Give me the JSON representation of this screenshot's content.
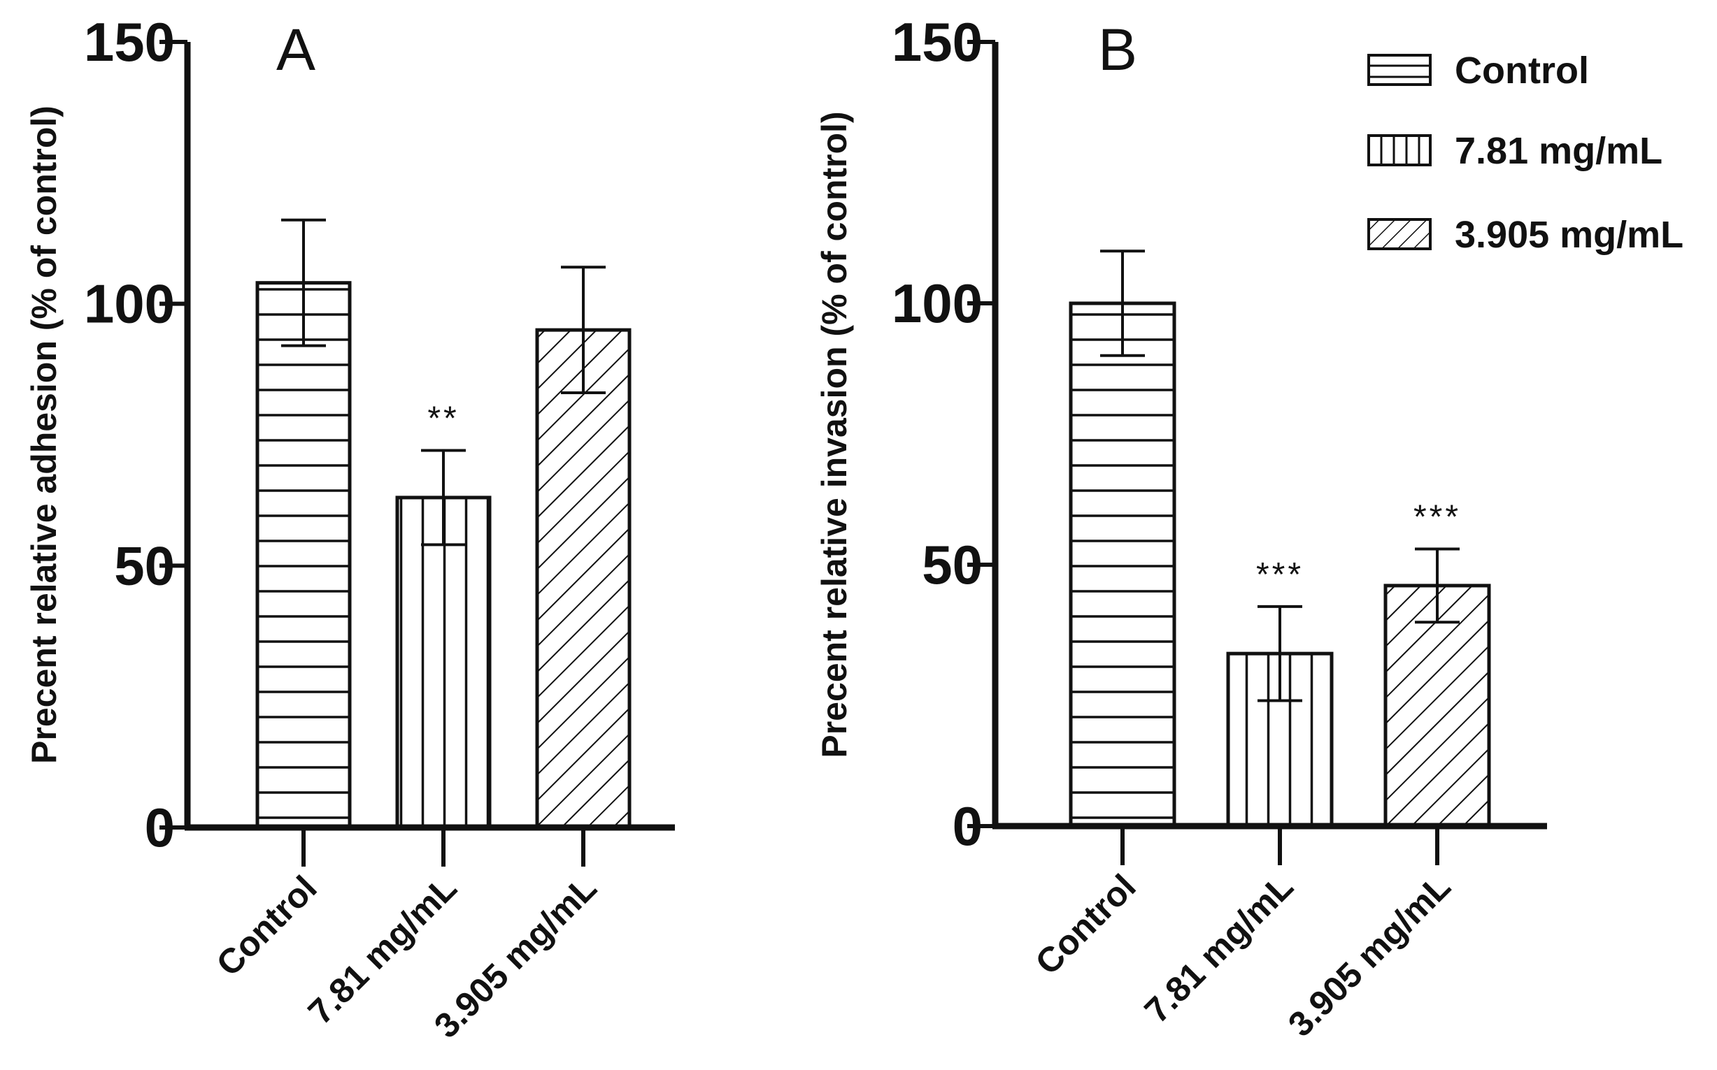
{
  "chart_data": [
    {
      "type": "bar",
      "panel_label": "A",
      "title": "",
      "categories": [
        "Control",
        "7.81 mg/mL",
        "3.905 mg/mL"
      ],
      "values": [
        104,
        63,
        95
      ],
      "errors": [
        12,
        9,
        12
      ],
      "significance": [
        "",
        "**",
        ""
      ],
      "patterns": [
        "horizontal",
        "vertical",
        "diagonal"
      ],
      "xlabel": "",
      "ylabel": "Precent relative adhesion (% of control)",
      "ylim": [
        0,
        150
      ],
      "yticks": [
        0,
        50,
        100,
        150
      ],
      "grid": false
    },
    {
      "type": "bar",
      "panel_label": "B",
      "title": "",
      "categories": [
        "Control",
        "7.81 mg/mL",
        "3.905 mg/mL"
      ],
      "values": [
        100,
        33,
        46
      ],
      "errors": [
        10,
        9,
        7
      ],
      "significance": [
        "",
        "***",
        "***"
      ],
      "patterns": [
        "horizontal",
        "vertical",
        "diagonal"
      ],
      "xlabel": "",
      "ylabel": "Precent relative invasion (% of control)",
      "ylim": [
        0,
        150
      ],
      "yticks": [
        0,
        50,
        100,
        150
      ],
      "grid": false
    }
  ],
  "legend": {
    "position": "top-right",
    "items": [
      {
        "label": "Control",
        "pattern": "horizontal"
      },
      {
        "label": "7.81 mg/mL",
        "pattern": "vertical"
      },
      {
        "label": "3.905 mg/mL",
        "pattern": "diagonal"
      }
    ]
  }
}
